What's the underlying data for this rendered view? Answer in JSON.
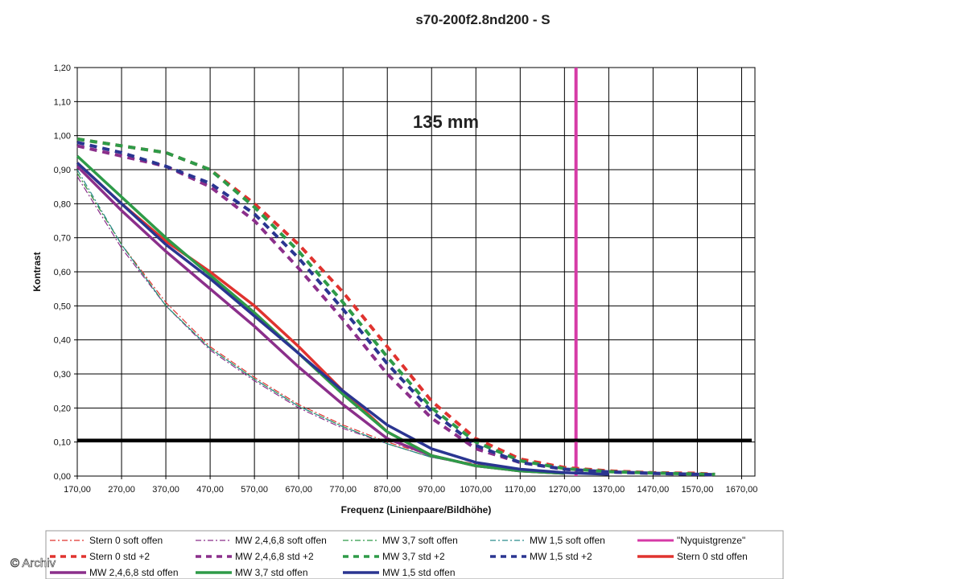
{
  "chart_data": {
    "type": "line",
    "title": "s70-200f2.8nd200 - S",
    "annotation": "135 mm",
    "xlabel": "Frequenz (Linienpaare/Bildhöhe)",
    "ylabel": "Kontrast",
    "xlim": [
      170,
      1700
    ],
    "ylim": [
      0,
      1.2
    ],
    "x_ticks": [
      "170,00",
      "270,00",
      "370,00",
      "470,00",
      "570,00",
      "670,00",
      "770,00",
      "870,00",
      "970,00",
      "1070,00",
      "1170,00",
      "1270,00",
      "1370,00",
      "1470,00",
      "1570,00",
      "1670,00"
    ],
    "y_ticks": [
      "0,00",
      "0,10",
      "0,20",
      "0,30",
      "0,40",
      "0,50",
      "0,60",
      "0,70",
      "0,80",
      "0,90",
      "1,00",
      "1,10",
      "1,20"
    ],
    "grid": true,
    "legend_position": "bottom",
    "copyright": "© Archiv",
    "series": [
      {
        "name": "Stern 0 soft offen",
        "color": "#e0332f",
        "style": "dashdot",
        "width": 1.2,
        "x": [
          170,
          270,
          370,
          470,
          570,
          670,
          770,
          870,
          970,
          1070,
          1170
        ],
        "y": [
          0.89,
          0.68,
          0.51,
          0.38,
          0.29,
          0.21,
          0.15,
          0.1,
          0.06,
          0.035,
          0.02
        ]
      },
      {
        "name": "MW 2,4,6,8 soft offen",
        "color": "#8b2f8b",
        "style": "dashdot",
        "width": 1.2,
        "x": [
          170,
          270,
          370,
          470,
          570,
          670,
          770,
          870,
          970,
          1070,
          1170
        ],
        "y": [
          0.88,
          0.67,
          0.5,
          0.37,
          0.28,
          0.2,
          0.14,
          0.095,
          0.055,
          0.03,
          0.018
        ]
      },
      {
        "name": "MW 3,7 soft offen",
        "color": "#2e9b48",
        "style": "dashdot",
        "width": 1.2,
        "x": [
          170,
          270,
          370,
          470,
          570,
          670,
          770,
          870,
          970,
          1070,
          1170
        ],
        "y": [
          0.89,
          0.68,
          0.5,
          0.375,
          0.285,
          0.205,
          0.145,
          0.095,
          0.055,
          0.032,
          0.018
        ]
      },
      {
        "name": "MW 1,5 soft offen",
        "color": "#2a8c8c",
        "style": "dashdot",
        "width": 1.2,
        "x": [
          170,
          270,
          370,
          470,
          570,
          670,
          770,
          870,
          970,
          1070,
          1170
        ],
        "y": [
          0.9,
          0.68,
          0.5,
          0.375,
          0.285,
          0.205,
          0.145,
          0.095,
          0.055,
          0.032,
          0.018
        ]
      },
      {
        "name": "\"Nyquistgrenze\"",
        "color": "#d63aa6",
        "style": "vline",
        "width": 4,
        "x": [
          1296,
          1296
        ],
        "y": [
          0,
          1.2
        ]
      },
      {
        "name": "Stern 0 std +2",
        "color": "#e0332f",
        "style": "dash",
        "width": 4,
        "x": [
          170,
          270,
          370,
          470,
          570,
          670,
          770,
          870,
          970,
          1070,
          1170,
          1270,
          1370,
          1470,
          1570,
          1610
        ],
        "y": [
          0.99,
          0.97,
          0.95,
          0.9,
          0.8,
          0.68,
          0.54,
          0.38,
          0.22,
          0.11,
          0.05,
          0.025,
          0.015,
          0.01,
          0.008,
          0.005
        ]
      },
      {
        "name": "MW 2,4,6,8 std +2",
        "color": "#8b2f8b",
        "style": "dash",
        "width": 4,
        "x": [
          170,
          270,
          370,
          470,
          570,
          670,
          770,
          870,
          970,
          1070,
          1170,
          1270,
          1370,
          1470,
          1570,
          1610
        ],
        "y": [
          0.97,
          0.94,
          0.91,
          0.85,
          0.75,
          0.61,
          0.46,
          0.3,
          0.17,
          0.08,
          0.04,
          0.02,
          0.012,
          0.008,
          0.005,
          0.004
        ]
      },
      {
        "name": "MW 3,7 std +2",
        "color": "#2e9b48",
        "style": "dash",
        "width": 4,
        "x": [
          170,
          270,
          370,
          470,
          570,
          670,
          770,
          870,
          970,
          1070,
          1170,
          1270,
          1370,
          1470,
          1570,
          1610
        ],
        "y": [
          0.99,
          0.97,
          0.95,
          0.9,
          0.79,
          0.66,
          0.51,
          0.35,
          0.2,
          0.1,
          0.045,
          0.022,
          0.013,
          0.009,
          0.006,
          0.005
        ]
      },
      {
        "name": "MW 1,5 std +2",
        "color": "#2a3591",
        "style": "dash",
        "width": 4,
        "x": [
          170,
          270,
          370,
          470,
          570,
          670,
          770,
          870,
          970,
          1070,
          1170,
          1270,
          1370,
          1470,
          1570,
          1610
        ],
        "y": [
          0.98,
          0.95,
          0.91,
          0.86,
          0.77,
          0.64,
          0.49,
          0.33,
          0.19,
          0.09,
          0.04,
          0.02,
          0.012,
          0.008,
          0.005,
          0.004
        ]
      },
      {
        "name": "Stern 0 std offen",
        "color": "#e0332f",
        "style": "solid",
        "width": 3.5,
        "x": [
          170,
          270,
          370,
          470,
          570,
          670,
          770,
          870,
          970,
          1070,
          1170,
          1270
        ],
        "y": [
          0.92,
          0.8,
          0.69,
          0.6,
          0.5,
          0.38,
          0.25,
          0.13,
          0.06,
          0.03,
          0.015,
          0.008
        ]
      },
      {
        "name": "MW 2,4,6,8 std offen",
        "color": "#8b2f8b",
        "style": "solid",
        "width": 3.5,
        "x": [
          170,
          270,
          370,
          470,
          570,
          670,
          770,
          870,
          970,
          1070,
          1170,
          1270
        ],
        "y": [
          0.91,
          0.78,
          0.66,
          0.55,
          0.44,
          0.32,
          0.21,
          0.11,
          0.06,
          0.03,
          0.015,
          0.008
        ]
      },
      {
        "name": "MW 3,7 std offen",
        "color": "#2e9b48",
        "style": "solid",
        "width": 3.5,
        "x": [
          170,
          270,
          370,
          470,
          570,
          670,
          770,
          870,
          970,
          1070,
          1170,
          1270
        ],
        "y": [
          0.94,
          0.82,
          0.7,
          0.59,
          0.48,
          0.36,
          0.24,
          0.13,
          0.06,
          0.03,
          0.015,
          0.008
        ]
      },
      {
        "name": "MW 1,5 std offen",
        "color": "#2a3591",
        "style": "solid",
        "width": 3.5,
        "x": [
          170,
          270,
          370,
          470,
          570,
          670,
          770,
          870,
          970,
          1070,
          1170,
          1270,
          1370
        ],
        "y": [
          0.92,
          0.8,
          0.68,
          0.58,
          0.47,
          0.36,
          0.25,
          0.15,
          0.08,
          0.04,
          0.02,
          0.01,
          0.005
        ]
      }
    ],
    "reference_lines": [
      {
        "y": 0.105,
        "color": "#000000",
        "width": 4
      }
    ]
  }
}
